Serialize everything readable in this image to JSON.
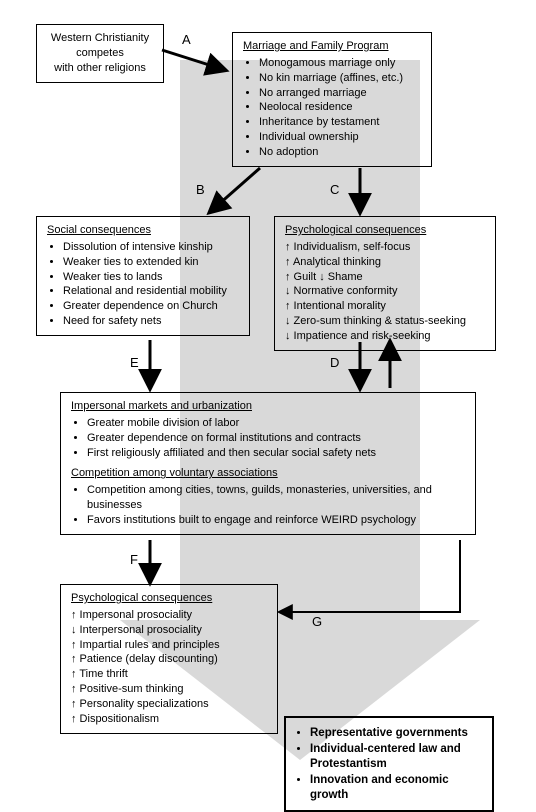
{
  "diagram": {
    "background_arrow_color": "#d9d9d9",
    "box_border_color": "#000000",
    "font_family": "Arial",
    "box1": {
      "lines": [
        "Western Christianity",
        "competes",
        "with other religions"
      ]
    },
    "box2": {
      "title": "Marriage and Family Program",
      "items": [
        "Monogamous marriage only",
        "No kin marriage (affines, etc.)",
        "No arranged marriage",
        "Neolocal residence",
        "Inheritance by testament",
        "Individual ownership",
        "No adoption"
      ]
    },
    "box3": {
      "title": "Social consequences",
      "items": [
        "Dissolution of intensive kinship",
        "Weaker ties to extended kin",
        "Weaker ties to lands",
        "Relational and residential mobility",
        "Greater dependence on Church",
        "Need for safety nets"
      ]
    },
    "box4": {
      "title": "Psychological consequences",
      "rows": [
        {
          "dir": "up",
          "text": "Individualism, self-focus"
        },
        {
          "dir": "up",
          "text": "Analytical thinking"
        },
        {
          "dir": "both",
          "text": "Guilt ↓ Shame"
        },
        {
          "dir": "down",
          "text": "Normative conformity"
        },
        {
          "dir": "up",
          "text": "Intentional morality"
        },
        {
          "dir": "down",
          "text": "Zero-sum thinking & status-seeking"
        },
        {
          "dir": "down",
          "text": "Impatience and risk-seeking"
        }
      ]
    },
    "box5": {
      "title1": "Impersonal markets and urbanization",
      "items1": [
        "Greater mobile division of labor",
        "Greater dependence on formal institutions and contracts",
        "First religiously affiliated and then secular social safety nets"
      ],
      "title2": "Competition among voluntary associations",
      "items2": [
        "Competition among cities, towns, guilds, monasteries, universities, and businesses",
        "Favors institutions built to engage and reinforce WEIRD psychology"
      ]
    },
    "box6": {
      "title": "Psychological consequences",
      "rows": [
        {
          "dir": "up",
          "text": "Impersonal prosociality"
        },
        {
          "dir": "down",
          "text": "Interpersonal prosociality"
        },
        {
          "dir": "up",
          "text": "Impartial rules and principles"
        },
        {
          "dir": "up",
          "text": "Patience (delay discounting)"
        },
        {
          "dir": "up",
          "text": "Time thrift"
        },
        {
          "dir": "up",
          "text": "Positive-sum thinking"
        },
        {
          "dir": "up",
          "text": "Personality specializations"
        },
        {
          "dir": "up",
          "text": "Dispositionalism"
        }
      ]
    },
    "box7": {
      "items": [
        "Representative governments",
        "Individual-centered law and Protestantism",
        "Innovation and economic growth"
      ]
    },
    "edge_labels": {
      "A": "A",
      "B": "B",
      "C": "C",
      "D": "D",
      "E": "E",
      "F": "F",
      "G": "G"
    }
  }
}
